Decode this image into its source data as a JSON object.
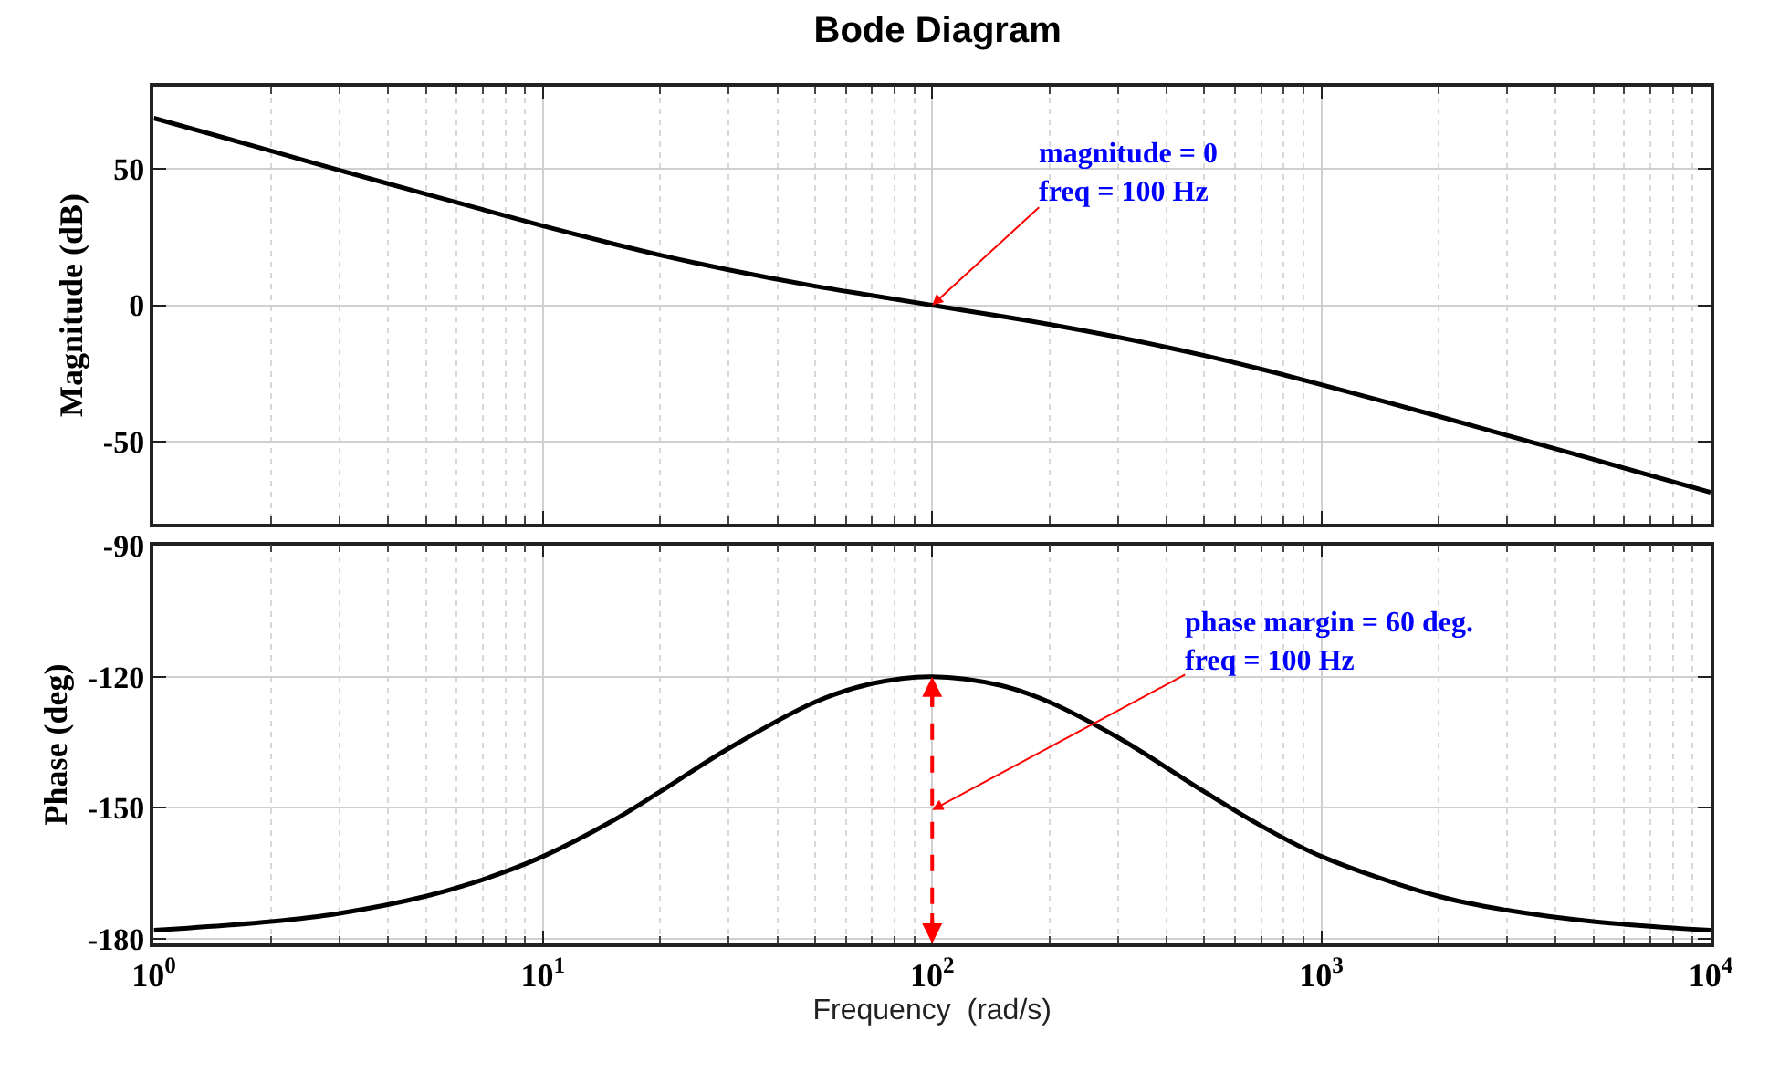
{
  "chart_data": [
    {
      "type": "line",
      "title": "Bode Diagram",
      "ylabel": "Magnitude (dB)",
      "x": [
        1,
        2,
        3,
        5,
        7,
        10,
        15,
        20,
        30,
        50,
        70,
        100,
        150,
        200,
        300,
        500,
        700,
        1000,
        2000,
        3000,
        5000,
        10000
      ],
      "series": [
        {
          "color": "#000000",
          "values": [
            68.6,
            56.6,
            49.5,
            40.8,
            35.1,
            29.1,
            22.7,
            18.4,
            13.0,
            7.0,
            3.6,
            0,
            -4.0,
            -7.0,
            -11.7,
            -18.4,
            -23.4,
            -29.1,
            -40.7,
            -47.7,
            -56.5,
            -68.6
          ]
        }
      ],
      "log": "x",
      "xlim": [
        1,
        10000
      ],
      "xticks": [
        {
          "value": 1,
          "label": "10$^{0}$"
        },
        {
          "value": 10,
          "label": "10$^{1}$"
        },
        {
          "value": 100,
          "label": "10$^{2}$"
        },
        {
          "value": 1000,
          "label": "10$^{3}$"
        },
        {
          "value": 10000,
          "label": "10$^{4}$"
        }
      ],
      "ylim": [
        -80,
        80
      ],
      "yticks": [
        -50,
        0,
        50
      ],
      "grid": true,
      "tick_labels": "y",
      "line_style": "solid",
      "annotations": [
        {
          "text": "magnitude = 0\nfreq = 100 Hz",
          "x": 100,
          "y": 0
        }
      ]
    },
    {
      "type": "line",
      "xlabel": "Frequency  (rad/s)",
      "ylabel": "Phase (deg)",
      "x": [
        1,
        2,
        3,
        5,
        7,
        10,
        15,
        20,
        30,
        50,
        70,
        100,
        150,
        200,
        300,
        500,
        700,
        1000,
        2000,
        3000,
        5000,
        10000
      ],
      "series": [
        {
          "color": "#000000",
          "values": [
            -178.0,
            -176.0,
            -174.1,
            -170.2,
            -166.4,
            -161.1,
            -153.1,
            -146.3,
            -136.4,
            -125.8,
            -121.6,
            -120,
            -122.0,
            -125.8,
            -133.9,
            -146.3,
            -154.1,
            -161.1,
            -170.2,
            -173.4,
            -176.0,
            -178.0
          ]
        }
      ],
      "log": "x",
      "xlim": [
        1,
        10000
      ],
      "xticks": [
        {
          "value": 1,
          "label": "10$^{0}$"
        },
        {
          "value": 10,
          "label": "10$^{1}$"
        },
        {
          "value": 100,
          "label": "10$^{2}$"
        },
        {
          "value": 1000,
          "label": "10$^{3}$"
        },
        {
          "value": 10000,
          "label": "10$^{4}$"
        }
      ],
      "ylim": [
        -181,
        -90
      ],
      "yticks": [
        -180,
        -150,
        -120,
        -90
      ],
      "grid": true,
      "line_style": "solid",
      "annotations": [
        "phase margin = 60 deg.\nfreq = 100 Hz"
      ]
    }
  ]
}
